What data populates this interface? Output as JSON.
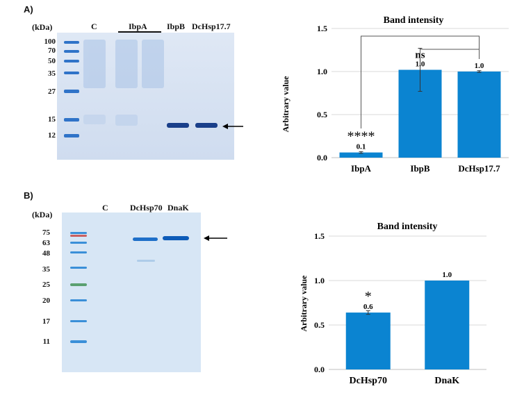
{
  "panels": [
    {
      "letter": "A)",
      "gel": {
        "unit_label": "(kDa)",
        "markers": [
          "100",
          "70",
          "50",
          "35",
          "27",
          "15",
          "12"
        ],
        "lane_labels": [
          "C",
          "IbpA",
          "IbpB",
          "DcHsp17.7"
        ]
      },
      "chart_data": {
        "type": "bar",
        "title": "Band intensity",
        "xlabel": "",
        "ylabel": "Arbitrary value",
        "ylim": [
          0,
          1.5
        ],
        "yticks": [
          "0.0",
          "0.5",
          "1.0",
          "1.5"
        ],
        "categories": [
          "IbpA",
          "IbpB",
          "DcHsp17.7"
        ],
        "values": [
          0.06,
          1.02,
          1.0
        ],
        "errors": [
          0.01,
          0.25,
          0.01
        ],
        "value_labels": [
          "0.1",
          "1.0",
          "1.0"
        ],
        "significance": [
          "****",
          "ns",
          ""
        ],
        "color": "#0b84d1",
        "grid": true
      }
    },
    {
      "letter": "B)",
      "gel": {
        "unit_label": "(kDa)",
        "markers": [
          "75",
          "63",
          "48",
          "35",
          "25",
          "20",
          "17",
          "11"
        ],
        "lane_labels": [
          "C",
          "DcHsp70",
          "DnaK"
        ]
      },
      "chart_data": {
        "type": "bar",
        "title": "Band intensity",
        "xlabel": "",
        "ylabel": "Arbitrary value",
        "ylim": [
          0,
          1.5
        ],
        "yticks": [
          "0.0",
          "0.5",
          "1.0",
          "1.5"
        ],
        "categories": [
          "DcHsp70",
          "DnaK"
        ],
        "values": [
          0.64,
          1.0
        ],
        "errors": [
          0.02,
          0.0
        ],
        "value_labels": [
          "0.6",
          "1.0"
        ],
        "significance": [
          "*",
          ""
        ],
        "color": "#0b84d1",
        "grid": true
      }
    }
  ]
}
